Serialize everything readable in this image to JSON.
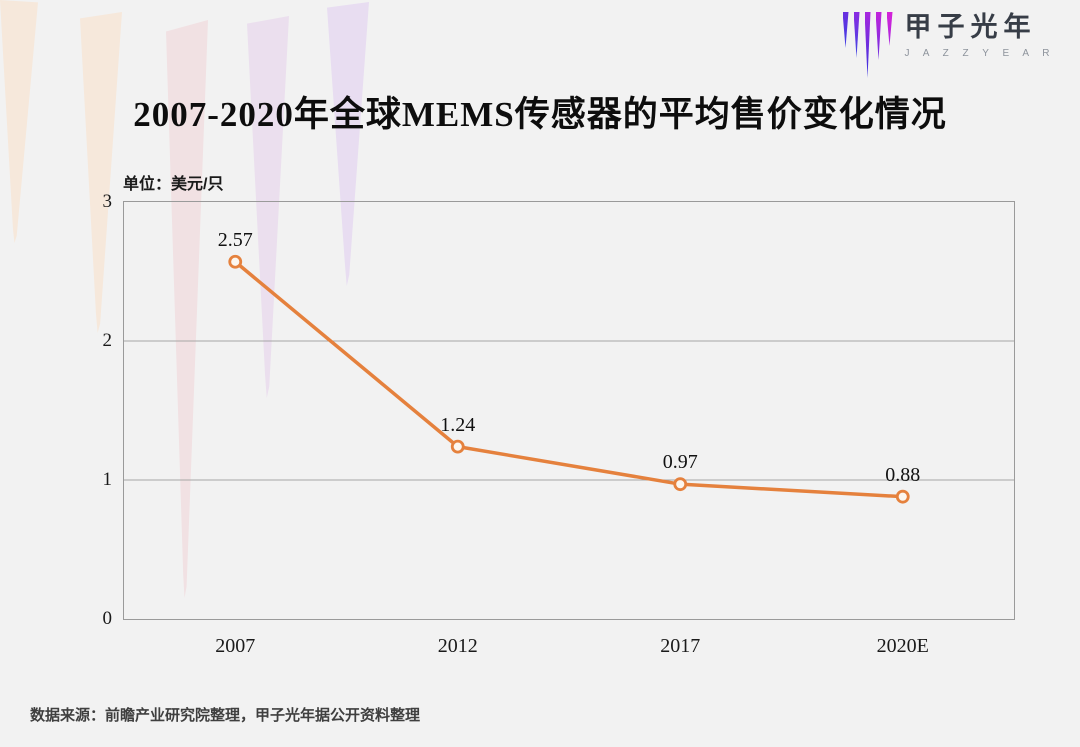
{
  "header": {
    "title": "2007-2020年全球MEMS传感器的平均售价变化情况",
    "logo": {
      "cn": "甲子光年",
      "en": "J A Z Z Y E A R",
      "icon": "jazzyear-icicle-strokes-icon",
      "icon_gradient_top": "#b02ddf",
      "icon_gradient_bottom": "#3b3bdc"
    }
  },
  "chart_data": {
    "type": "line",
    "title": "2007-2020年全球MEMS传感器的平均售价变化情况",
    "unit_label": "单位：美元/只",
    "ylabel": "美元/只",
    "xlabel": "",
    "categories": [
      "2007",
      "2012",
      "2017",
      "2020E"
    ],
    "values": [
      2.57,
      1.24,
      0.97,
      0.88
    ],
    "data_labels": [
      "2.57",
      "1.24",
      "0.97",
      "0.88"
    ],
    "ylim": [
      0,
      3
    ],
    "yticks": [
      0,
      1,
      2,
      3
    ],
    "grid": true,
    "legend_position": "none",
    "line_color": "#e5813d",
    "marker_style": "open-circle",
    "marker_fill": "#fcf6ef",
    "gridline_color": "#a6a6a6",
    "plot_border_color": "#9a9a9a"
  },
  "decor": {
    "background": "#f2f2f2",
    "icicle_colors": [
      "#f6e8db",
      "#f6e8db",
      "#f1e1e3",
      "#ebdfee",
      "#e8ddf1"
    ]
  },
  "footer": {
    "source": "数据来源：前瞻产业研究院整理，甲子光年据公开资料整理"
  }
}
